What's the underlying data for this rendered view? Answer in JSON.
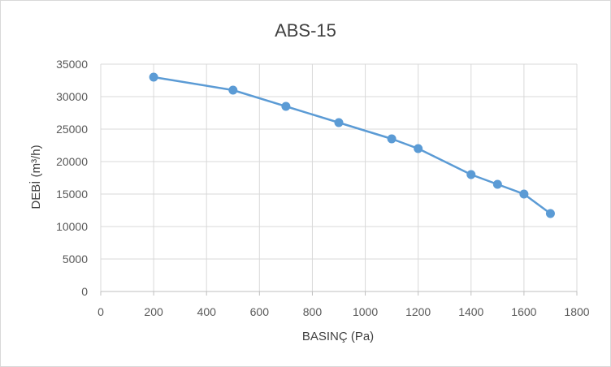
{
  "chart_data": {
    "type": "line",
    "title": "ABS-15",
    "xlabel": "BASINÇ (Pa)",
    "ylabel": "DEBİ (m³/h)",
    "xlim": [
      0,
      1800
    ],
    "ylim": [
      0,
      35000
    ],
    "x_ticks": [
      "0",
      "200",
      "400",
      "600",
      "800",
      "1000",
      "1200",
      "1400",
      "1600",
      "1800"
    ],
    "y_ticks": [
      "0",
      "5000",
      "10000",
      "15000",
      "20000",
      "25000",
      "30000",
      "35000"
    ],
    "grid": true,
    "legend": "none",
    "series": [
      {
        "color": "#5b9bd5",
        "marker": "circle",
        "x": [
          200,
          500,
          700,
          900,
          1100,
          1200,
          1400,
          1500,
          1600,
          1700
        ],
        "y": [
          33000,
          31000,
          28500,
          26000,
          23500,
          22000,
          18000,
          16500,
          15000,
          12000
        ]
      }
    ]
  }
}
